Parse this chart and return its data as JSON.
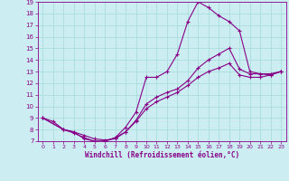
{
  "xlabel": "Windchill (Refroidissement éolien,°C)",
  "bg_color": "#cceef2",
  "line_color": "#880088",
  "grid_color": "#aadddd",
  "xlim": [
    -0.5,
    23.5
  ],
  "ylim": [
    7,
    19
  ],
  "yticks": [
    7,
    8,
    9,
    10,
    11,
    12,
    13,
    14,
    15,
    16,
    17,
    18,
    19
  ],
  "xticks": [
    0,
    1,
    2,
    3,
    4,
    5,
    6,
    7,
    8,
    9,
    10,
    11,
    12,
    13,
    14,
    15,
    16,
    17,
    18,
    19,
    20,
    21,
    22,
    23
  ],
  "curve1_x": [
    0,
    1,
    2,
    3,
    4,
    5,
    6,
    7,
    8,
    9,
    10,
    11,
    12,
    13,
    14,
    15,
    16,
    17,
    18,
    19,
    20,
    21,
    22,
    23
  ],
  "curve1_y": [
    9.0,
    8.7,
    8.0,
    7.8,
    7.2,
    7.0,
    7.0,
    7.3,
    8.2,
    9.5,
    12.5,
    12.5,
    13.0,
    14.5,
    17.3,
    19.0,
    18.5,
    17.8,
    17.3,
    16.5,
    13.0,
    12.8,
    12.7,
    13.0
  ],
  "curve2_x": [
    0,
    2,
    3,
    4,
    5,
    6,
    7,
    8,
    9,
    10,
    11,
    12,
    13,
    14,
    15,
    16,
    17,
    18,
    19,
    20,
    21,
    22,
    23
  ],
  "curve2_y": [
    9.0,
    8.0,
    7.7,
    7.3,
    7.0,
    7.0,
    7.3,
    7.8,
    8.8,
    10.2,
    10.8,
    11.2,
    11.5,
    12.2,
    13.3,
    14.0,
    14.5,
    15.0,
    13.2,
    12.8,
    12.8,
    12.8,
    13.0
  ],
  "curve3_x": [
    0,
    2,
    3,
    4,
    5,
    6,
    7,
    8,
    9,
    10,
    11,
    12,
    13,
    14,
    15,
    16,
    17,
    18,
    19,
    20,
    21,
    22,
    23
  ],
  "curve3_y": [
    9.0,
    8.0,
    7.8,
    7.5,
    7.2,
    7.1,
    7.2,
    7.8,
    8.7,
    9.8,
    10.4,
    10.8,
    11.2,
    11.8,
    12.5,
    13.0,
    13.3,
    13.7,
    12.7,
    12.5,
    12.5,
    12.7,
    13.0
  ]
}
